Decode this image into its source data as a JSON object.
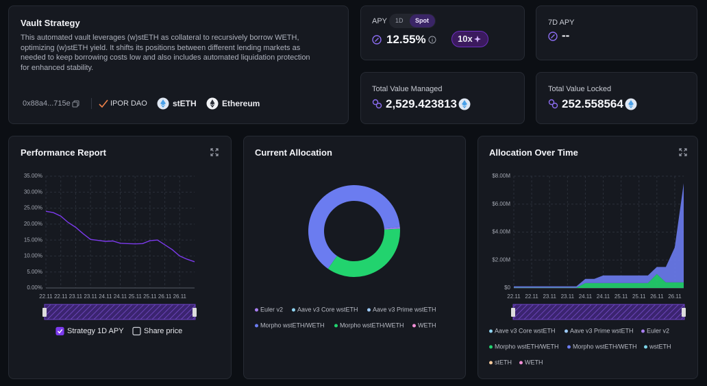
{
  "vault": {
    "title": "Vault Strategy",
    "description": "This automated vault leverages (w)stETH as collateral to recursively borrow WETH, optimizing (w)stETH yield. It shifts its positions between different lending markets as needed to keep borrowing costs low and also includes automated liquidation protection for enhanced stability.",
    "address": "0x88a4...715e",
    "curator": "IPOR DAO",
    "asset": "stETH",
    "network": "Ethereum"
  },
  "metrics": {
    "apy": {
      "label": "APY",
      "tabs": [
        "1D",
        "Spot"
      ],
      "value": "12.55%",
      "leverage": "10x"
    },
    "apy_7d": {
      "label": "7D APY",
      "value": "--"
    },
    "tvm": {
      "label": "Total Value Managed",
      "value": "2,529.423813"
    },
    "tvl": {
      "label": "Total Value Locked",
      "value": "252.558564"
    }
  },
  "chart_data": [
    {
      "type": "line",
      "title": "Performance Report",
      "categories": [
        "22.11",
        null,
        "22.11",
        null,
        "23.11",
        null,
        "23.11",
        null,
        "24.11",
        null,
        "24.11",
        null,
        "25.11",
        null,
        "25.11",
        null,
        "26.11",
        null,
        "26.11",
        null,
        null
      ],
      "series": [
        {
          "name": "Strategy 1D APY",
          "color": "#7c3aed",
          "visible": true,
          "values": [
            24,
            23.6,
            22.5,
            20.5,
            19,
            17,
            15.2,
            14.9,
            14.6,
            14.7,
            14,
            13.9,
            13.8,
            13.9,
            14.8,
            15,
            13.5,
            12,
            10,
            9,
            8.2
          ]
        },
        {
          "name": "Share price",
          "color": "#22d3ee",
          "visible": false,
          "values": [
            null,
            null,
            null,
            null,
            null,
            null,
            null,
            null,
            null,
            null,
            null,
            null,
            null,
            null,
            null,
            null,
            null,
            null,
            null,
            null,
            null
          ]
        }
      ],
      "ylim": [
        0,
        35
      ],
      "yticks": [
        {
          "value": 0,
          "label": "0.00%"
        },
        {
          "value": 5,
          "label": "5.00%"
        },
        {
          "value": 10,
          "label": "10.00%"
        },
        {
          "value": 15,
          "label": "15.00%"
        },
        {
          "value": 20,
          "label": "20.00%"
        },
        {
          "value": 25,
          "label": "25.00%"
        },
        {
          "value": 30,
          "label": "30.00%"
        },
        {
          "value": 35,
          "label": "35.00%"
        }
      ],
      "grid": true
    },
    {
      "type": "donut",
      "title": "Current Allocation",
      "categories": [
        "Euler v2",
        "Aave v3 Core wstETH",
        "Aave v3 Prime wstETH",
        "Morpho wstETH/WETH",
        "Morpho wstETH/WETH",
        "WETH"
      ],
      "values": [
        0.5,
        0,
        0,
        64,
        35.5,
        0
      ],
      "colors": [
        "#a87ef0",
        "#8fd3f0",
        "#9cc9f5",
        "#6b7cf0",
        "#22d36e",
        "#f28fd6"
      ]
    },
    {
      "type": "stacked_area",
      "title": "Allocation Over Time",
      "categories": [
        "22.11",
        null,
        "22.11",
        null,
        "23.11",
        null,
        "23.11",
        null,
        "24.11",
        null,
        "24.11",
        null,
        "25.11",
        null,
        "25.11",
        null,
        "26.11",
        null,
        "26.11",
        null
      ],
      "series": [
        {
          "name": "Aave v3 Core wstETH",
          "color": "#8fd3f0",
          "values": [
            0,
            0,
            0,
            0,
            0,
            0,
            0,
            0,
            0,
            0,
            0,
            0,
            0,
            0,
            0,
            0,
            0,
            0,
            0,
            0
          ]
        },
        {
          "name": "Aave v3 Prime wstETH",
          "color": "#9cc9f5",
          "values": [
            0,
            0,
            0,
            0,
            0,
            0,
            0,
            0,
            0,
            0,
            0,
            0,
            0,
            0,
            0,
            0,
            0,
            0,
            0,
            0
          ]
        },
        {
          "name": "Euler v2",
          "color": "#a87ef0",
          "values": [
            0,
            0,
            0,
            0,
            0,
            0,
            0,
            0,
            0,
            0,
            0,
            0,
            0,
            0,
            0,
            0,
            0,
            0,
            0,
            0
          ]
        },
        {
          "name": "Morpho wstETH/WETH",
          "color": "#22d36e",
          "values": [
            20000,
            20000,
            20000,
            20000,
            20000,
            20000,
            20000,
            20000,
            350000,
            350000,
            350000,
            350000,
            350000,
            350000,
            350000,
            350000,
            1000000,
            400000,
            400000,
            400000
          ]
        },
        {
          "name": "Morpho wstETH/WETH",
          "color": "#6b7cf0",
          "values": [
            100000,
            100000,
            100000,
            100000,
            100000,
            100000,
            100000,
            100000,
            300000,
            300000,
            550000,
            550000,
            550000,
            550000,
            550000,
            550000,
            500000,
            1100000,
            2500000,
            7100000
          ]
        },
        {
          "name": "wstETH",
          "color": "#7dd3e8",
          "values": [
            0,
            0,
            0,
            0,
            0,
            0,
            0,
            0,
            0,
            0,
            0,
            0,
            0,
            0,
            0,
            0,
            0,
            0,
            0,
            0
          ]
        },
        {
          "name": "stETH",
          "color": "#f5c99b",
          "values": [
            0,
            0,
            0,
            0,
            0,
            0,
            0,
            0,
            0,
            0,
            0,
            0,
            0,
            0,
            0,
            0,
            0,
            0,
            0,
            0
          ]
        },
        {
          "name": "WETH",
          "color": "#f28fd6",
          "values": [
            0,
            0,
            0,
            0,
            0,
            0,
            0,
            0,
            0,
            0,
            0,
            0,
            0,
            0,
            0,
            0,
            0,
            0,
            0,
            0
          ]
        }
      ],
      "ylim": [
        0,
        8000000
      ],
      "yticks": [
        {
          "value": 0,
          "label": "$0"
        },
        {
          "value": 2000000,
          "label": "$2.00M"
        },
        {
          "value": 4000000,
          "label": "$4.00M"
        },
        {
          "value": 6000000,
          "label": "$6.00M"
        },
        {
          "value": 8000000,
          "label": "$8.00M"
        }
      ],
      "grid": true
    }
  ]
}
